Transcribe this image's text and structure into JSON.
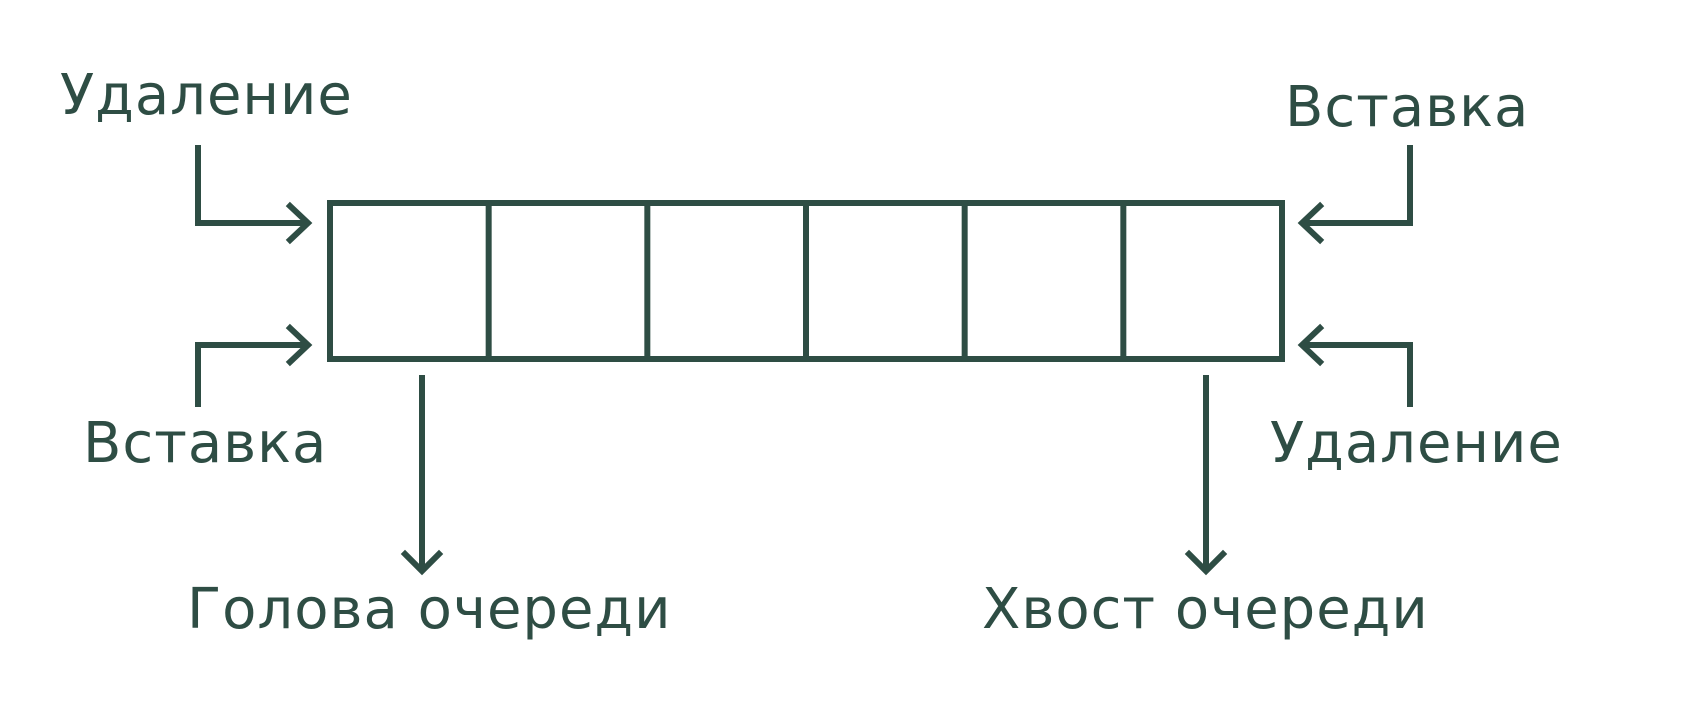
{
  "colors": {
    "ink": "#2e4d44",
    "background": "#ffffff"
  },
  "queue": {
    "cell_count": 6
  },
  "labels": {
    "front_remove": "Удаление",
    "front_insert": "Вставка",
    "back_insert": "Вставка",
    "back_remove": "Удаление",
    "head": "Голова очереди",
    "tail": "Хвост очереди"
  }
}
